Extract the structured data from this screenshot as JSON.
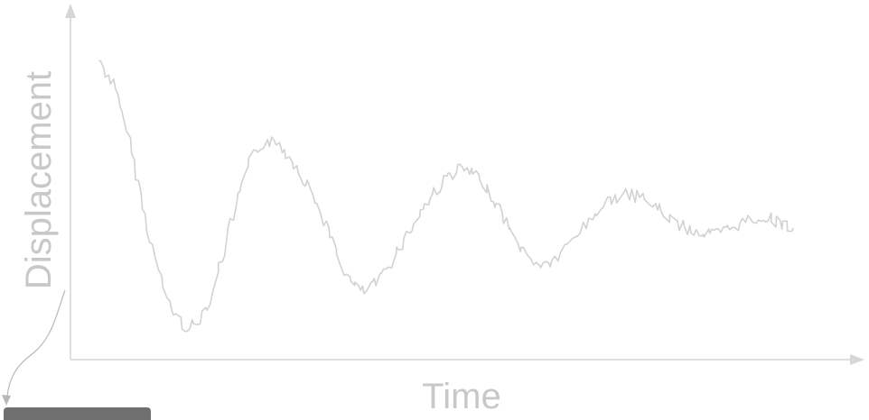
{
  "chart_data": {
    "type": "line",
    "xlabel": "Time",
    "ylabel": "Displacement",
    "xlim": [
      0,
      1
    ],
    "ylim": [
      -0.5,
      1.1
    ],
    "grid": false,
    "legend": "none",
    "series": [
      {
        "color": "#d2d2d2",
        "x": [
          0.0,
          0.02,
          0.04,
          0.06,
          0.08,
          0.1,
          0.12,
          0.14,
          0.16,
          0.18,
          0.2,
          0.22,
          0.24,
          0.26,
          0.28,
          0.3,
          0.32,
          0.34,
          0.36,
          0.38,
          0.4,
          0.42,
          0.44,
          0.46,
          0.48,
          0.5,
          0.52,
          0.54,
          0.56,
          0.58,
          0.6,
          0.62,
          0.64,
          0.66,
          0.68,
          0.7,
          0.72,
          0.74,
          0.76,
          0.78,
          0.8,
          0.82,
          0.84,
          0.86,
          0.88,
          0.9,
          0.92,
          0.94,
          0.96,
          0.98,
          1.0
        ],
        "y": [
          1.0,
          0.87,
          0.62,
          0.28,
          -0.06,
          -0.3,
          -0.42,
          -0.42,
          -0.28,
          -0.02,
          0.26,
          0.48,
          0.57,
          0.55,
          0.45,
          0.33,
          0.18,
          -0.01,
          -0.18,
          -0.24,
          -0.19,
          -0.08,
          0.04,
          0.17,
          0.28,
          0.37,
          0.42,
          0.39,
          0.3,
          0.18,
          0.04,
          -0.06,
          -0.1,
          -0.06,
          0.03,
          0.12,
          0.2,
          0.26,
          0.28,
          0.27,
          0.22,
          0.16,
          0.11,
          0.08,
          0.07,
          0.08,
          0.12,
          0.15,
          0.16,
          0.13,
          0.1
        ]
      }
    ]
  }
}
